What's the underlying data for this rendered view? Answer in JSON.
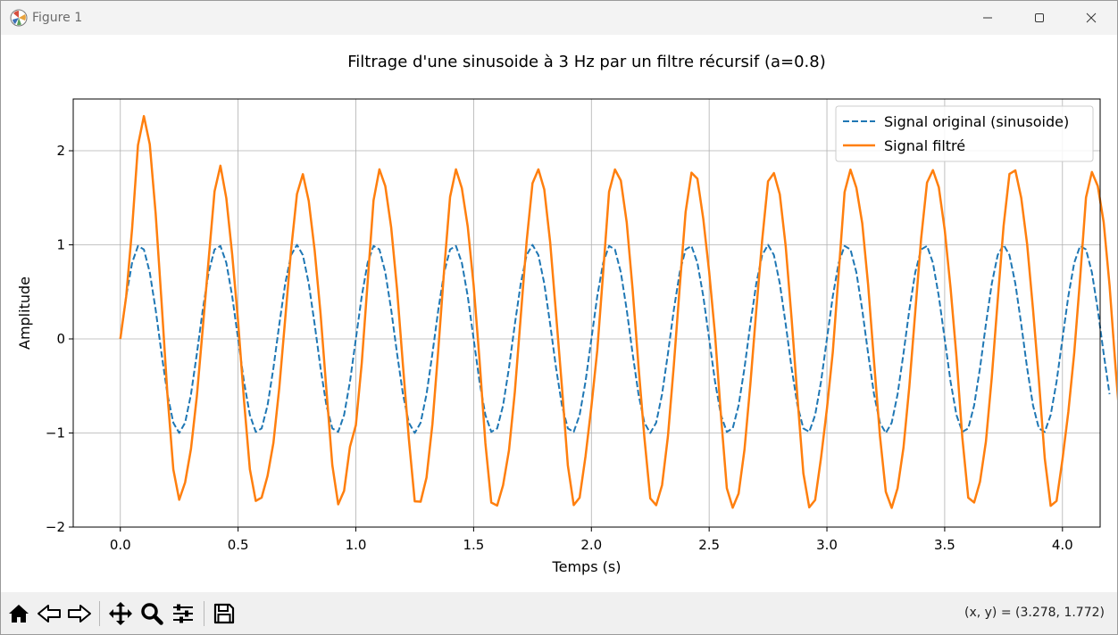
{
  "window": {
    "title": "Figure 1"
  },
  "toolbar": {
    "buttons": [
      {
        "name": "home-icon",
        "label": "Home"
      },
      {
        "name": "back-icon",
        "label": "Back"
      },
      {
        "name": "forward-icon",
        "label": "Forward"
      },
      {
        "name": "pan-icon",
        "label": "Pan"
      },
      {
        "name": "zoom-icon",
        "label": "Zoom"
      },
      {
        "name": "configure-subplots-icon",
        "label": "Subplots"
      },
      {
        "name": "save-icon",
        "label": "Save"
      }
    ],
    "coords_readout": "(x, y) = (3.278, 1.772)"
  },
  "chart_data": {
    "type": "line",
    "title": "Filtrage d'une sinusoide à 3 Hz par un filtre récursif (a=0.8)",
    "xlabel": "Temps (s)",
    "ylabel": "Amplitude",
    "xlim": [
      -0.2,
      4.16
    ],
    "ylim": [
      -2,
      2.55
    ],
    "xticks": [
      0.0,
      0.5,
      1.0,
      1.5,
      2.0,
      2.5,
      3.0,
      3.5,
      4.0
    ],
    "xtick_labels": [
      "0.0",
      "0.5",
      "1.0",
      "1.5",
      "2.0",
      "2.5",
      "3.0",
      "3.5",
      "4.0"
    ],
    "yticks": [
      -2,
      -1,
      0,
      1,
      2
    ],
    "ytick_labels": [
      "−2",
      "−1",
      "0",
      "1",
      "2"
    ],
    "grid": true,
    "legend_position": "top-right",
    "sample_rate_hz": 40,
    "x_start": 0,
    "x_end": 3.975,
    "series": [
      {
        "name": "Signal original (sinusoide)",
        "color": "#1f77b4",
        "style": "dashed",
        "values": [
          0.0,
          0.454,
          0.809,
          0.988,
          0.951,
          0.707,
          0.309,
          -0.156,
          -0.588,
          -0.891,
          -1.0,
          -0.891,
          -0.588,
          -0.156,
          0.309,
          0.707,
          0.951,
          0.988,
          0.809,
          0.454,
          0.0,
          -0.454,
          -0.809,
          -0.988,
          -0.951,
          -0.707,
          -0.309,
          0.156,
          0.588,
          0.891,
          1.0,
          0.891,
          0.588,
          0.156,
          -0.309,
          -0.707,
          -0.951,
          -0.988,
          -0.809,
          -0.454,
          0.0,
          0.454,
          0.809,
          0.988,
          0.951,
          0.707,
          0.309,
          -0.156,
          -0.588,
          -0.891,
          -1.0,
          -0.891,
          -0.588,
          -0.156,
          0.309,
          0.707,
          0.951,
          0.988,
          0.809,
          0.454,
          0.0,
          -0.454,
          -0.809,
          -0.988,
          -0.951,
          -0.707,
          -0.309,
          0.156,
          0.588,
          0.891,
          1.0,
          0.891,
          0.588,
          0.156,
          -0.309,
          -0.707,
          -0.951,
          -0.988,
          -0.809,
          -0.454,
          0.0,
          0.454,
          0.809,
          0.988,
          0.951,
          0.707,
          0.309,
          -0.156,
          -0.588,
          -0.891,
          -1.0,
          -0.891,
          -0.588,
          -0.156,
          0.309,
          0.707,
          0.951,
          0.988,
          0.809,
          0.454,
          0.0,
          -0.454,
          -0.809,
          -0.988,
          -0.951,
          -0.707,
          -0.309,
          0.156,
          0.588,
          0.891,
          1.0,
          0.891,
          0.588,
          0.156,
          -0.309,
          -0.707,
          -0.951,
          -0.988,
          -0.809,
          -0.454,
          0.0,
          0.454,
          0.809,
          0.988,
          0.951,
          0.707,
          0.309,
          -0.156,
          -0.588,
          -0.891,
          -1.0,
          -0.891,
          -0.588,
          -0.156,
          0.309,
          0.707,
          0.951,
          0.988,
          0.809,
          0.454,
          0.0,
          -0.454,
          -0.809,
          -0.988,
          -0.951,
          -0.707,
          -0.309,
          0.156,
          0.588,
          0.891,
          1.0,
          0.891,
          0.588,
          0.156,
          -0.309,
          -0.707,
          -0.951,
          -0.988,
          -0.809,
          -0.454,
          0.0,
          0.454,
          0.809,
          0.988,
          0.951,
          0.707,
          0.309,
          -0.156,
          -0.588
        ]
      },
      {
        "name": "Signal filtré",
        "color": "#ff7f0e",
        "style": "solid",
        "values": [
          0.0,
          0.454,
          1.172,
          2.06,
          2.368,
          2.069,
          1.332,
          0.394,
          -0.588,
          -1.387,
          -1.71,
          -1.526,
          -1.168,
          -0.607,
          0.113,
          0.844,
          1.568,
          1.841,
          1.496,
          0.896,
          0.186,
          -0.651,
          -1.385,
          -1.722,
          -1.686,
          -1.457,
          -1.104,
          -0.516,
          0.213,
          0.945,
          1.54,
          1.751,
          1.466,
          0.942,
          0.271,
          -0.543,
          -1.341,
          -1.758,
          -1.615,
          -1.146,
          -0.917,
          -0.257,
          0.604,
          1.471,
          1.802,
          1.624,
          1.184,
          0.526,
          -0.283,
          -1.063,
          -1.726,
          -1.73,
          -1.473,
          -0.906,
          -0.115,
          0.739,
          1.509,
          1.802,
          1.602,
          1.194,
          0.571,
          -0.222,
          -1.109,
          -1.739,
          -1.771,
          -1.555,
          -1.186,
          -0.563,
          0.238,
          1.034,
          1.654,
          1.802,
          1.588,
          1.026,
          0.264,
          -0.513,
          -1.344,
          -1.766,
          -1.687,
          -1.249,
          -0.719,
          -0.121,
          0.707,
          1.563,
          1.801,
          1.683,
          1.238,
          0.527,
          -0.289,
          -1.047,
          -1.695,
          -1.767,
          -1.555,
          -1.035,
          -0.281,
          0.552,
          1.348,
          1.767,
          1.703,
          1.277,
          0.713,
          0.044,
          -0.809,
          -1.586,
          -1.794,
          -1.643,
          -1.177,
          -0.48,
          0.302,
          1.047,
          1.675,
          1.762,
          1.536,
          0.984,
          0.217,
          -0.628,
          -1.429,
          -1.79,
          -1.712,
          -1.264,
          -0.742,
          -0.139,
          0.7,
          1.56,
          1.799,
          1.607,
          1.229,
          0.574,
          -0.24,
          -1.028,
          -1.625,
          -1.796,
          -1.586,
          -1.157,
          -0.504,
          0.287,
          1.067,
          1.661,
          1.794,
          1.612,
          1.162,
          0.541,
          -0.19,
          -1.052,
          -1.687,
          -1.739,
          -1.517,
          -1.092,
          -0.408,
          0.406,
          1.199,
          1.753,
          1.791,
          1.499,
          1.008,
          0.314,
          -0.44,
          -1.273,
          -1.774,
          -1.722,
          -1.282,
          -0.776,
          -0.148,
          0.645,
          1.504,
          1.774,
          1.625,
          1.24,
          0.57,
          -0.288,
          -1.075,
          -1.592,
          -1.797
        ]
      }
    ]
  }
}
